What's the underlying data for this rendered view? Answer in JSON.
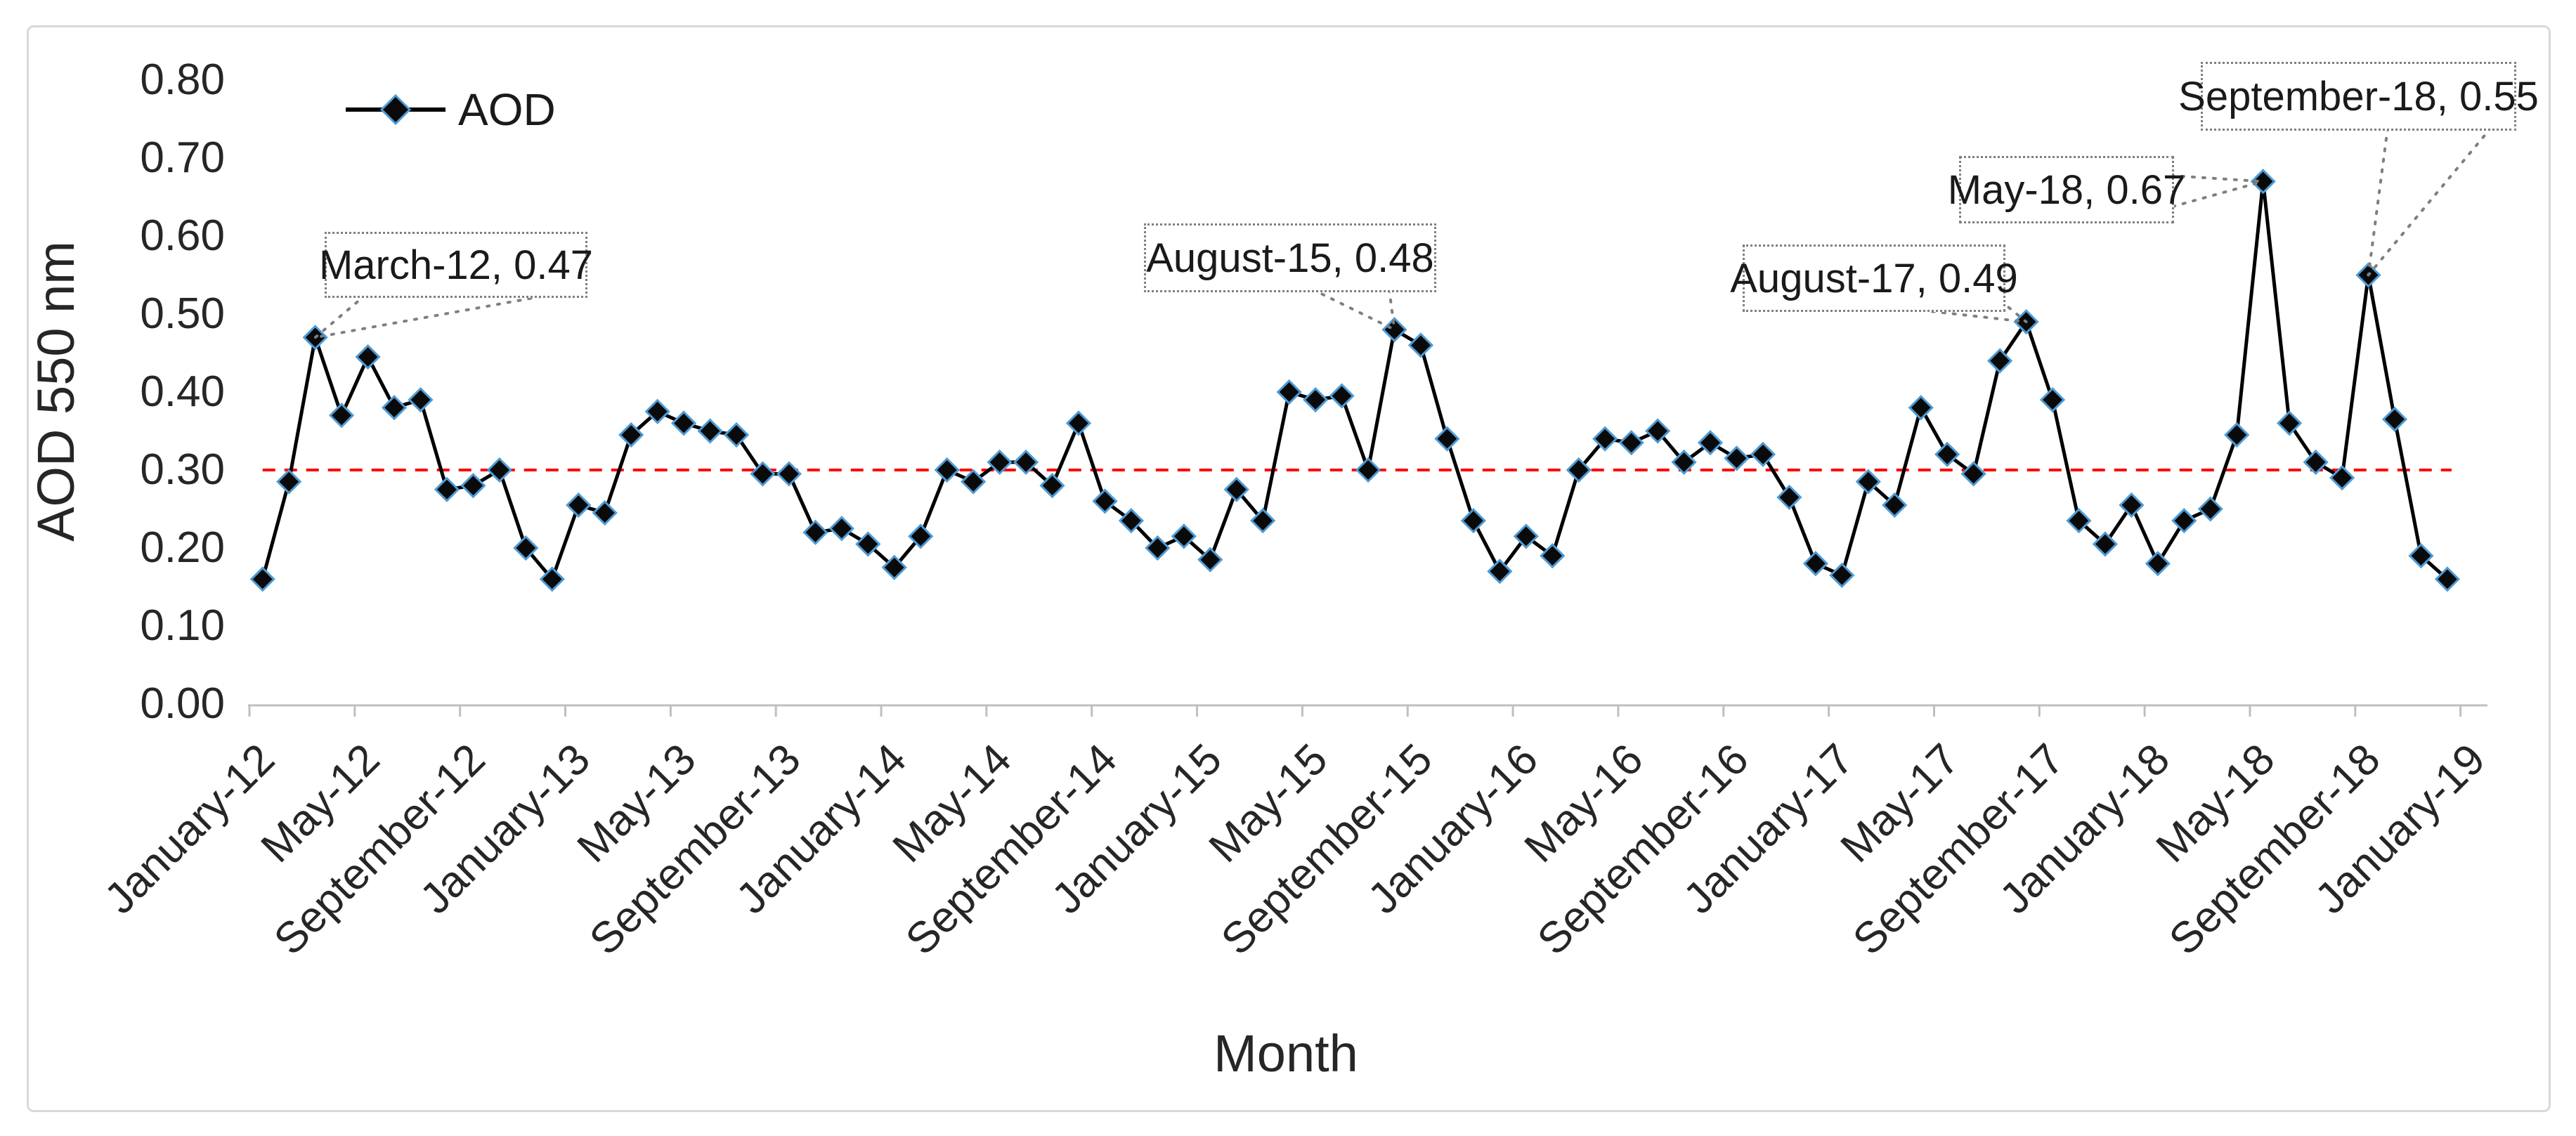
{
  "figure": {
    "background": "#FFFFFF",
    "border_color": "#D9D9D9"
  },
  "axis": {
    "x_title": "Month",
    "y_title": "AOD 550 nm"
  },
  "chart_data": {
    "type": "line",
    "title": "",
    "xlabel": "Month",
    "ylabel": "AOD 550 nm",
    "legend_label": "AOD",
    "legend_position": "top-left-inside",
    "grid": "off",
    "ylim": [
      0.0,
      0.8
    ],
    "y_step": 0.1,
    "series_color": "#000000",
    "marker": {
      "shape": "diamond",
      "fill": "#0a0a0a",
      "outline": "#4E9BD6"
    },
    "reference_line": {
      "value": 0.3,
      "color": "#FF0000",
      "style": "dashed"
    },
    "y_tick_labels": [
      "0.00",
      "0.10",
      "0.20",
      "0.30",
      "0.40",
      "0.50",
      "0.60",
      "0.70",
      "0.80"
    ],
    "x_tick_labels": [
      "January-12",
      "May-12",
      "September-12",
      "January-13",
      "May-13",
      "September-13",
      "January-14",
      "May-14",
      "September-14",
      "January-15",
      "May-15",
      "September-15",
      "January-16",
      "May-16",
      "September-16",
      "January-17",
      "May-17",
      "September-17",
      "January-18",
      "May-18",
      "September-18",
      "January-19"
    ],
    "categories": [
      "January-12",
      "February-12",
      "March-12",
      "April-12",
      "May-12",
      "June-12",
      "July-12",
      "August-12",
      "September-12",
      "October-12",
      "November-12",
      "December-12",
      "January-13",
      "February-13",
      "March-13",
      "April-13",
      "May-13",
      "June-13",
      "July-13",
      "August-13",
      "September-13",
      "October-13",
      "November-13",
      "December-13",
      "January-14",
      "February-14",
      "March-14",
      "April-14",
      "May-14",
      "June-14",
      "July-14",
      "August-14",
      "September-14",
      "October-14",
      "November-14",
      "December-14",
      "January-15",
      "February-15",
      "March-15",
      "April-15",
      "May-15",
      "June-15",
      "July-15",
      "August-15",
      "September-15",
      "October-15",
      "November-15",
      "December-15",
      "January-16",
      "February-16",
      "March-16",
      "April-16",
      "May-16",
      "June-16",
      "July-16",
      "August-16",
      "September-16",
      "October-16",
      "November-16",
      "December-16",
      "January-17",
      "February-17",
      "March-17",
      "April-17",
      "May-17",
      "June-17",
      "July-17",
      "August-17",
      "September-17",
      "October-17",
      "November-17",
      "December-17",
      "January-18",
      "February-18",
      "March-18",
      "April-18",
      "May-18",
      "June-18",
      "July-18",
      "August-18",
      "September-18",
      "October-18",
      "November-18",
      "December-18"
    ],
    "values": [
      0.16,
      0.285,
      0.47,
      0.37,
      0.445,
      0.38,
      0.39,
      0.275,
      0.28,
      0.3,
      0.2,
      0.16,
      0.255,
      0.245,
      0.345,
      0.375,
      0.36,
      0.35,
      0.345,
      0.295,
      0.295,
      0.22,
      0.225,
      0.205,
      0.175,
      0.215,
      0.3,
      0.285,
      0.31,
      0.31,
      0.28,
      0.36,
      0.26,
      0.235,
      0.2,
      0.215,
      0.185,
      0.275,
      0.235,
      0.4,
      0.39,
      0.395,
      0.3,
      0.48,
      0.46,
      0.34,
      0.235,
      0.17,
      0.215,
      0.19,
      0.3,
      0.34,
      0.335,
      0.35,
      0.31,
      0.335,
      0.315,
      0.32,
      0.265,
      0.18,
      0.165,
      0.285,
      0.255,
      0.38,
      0.32,
      0.295,
      0.44,
      0.49,
      0.39,
      0.235,
      0.205,
      0.255,
      0.18,
      0.235,
      0.25,
      0.345,
      0.67,
      0.36,
      0.31,
      0.29,
      0.55,
      0.365,
      0.19,
      0.16
    ],
    "annotations": [
      {
        "label": "March-12, 0.47",
        "month": "March-12",
        "value": 0.47
      },
      {
        "label": "August-15, 0.48",
        "month": "August-15",
        "value": 0.48
      },
      {
        "label": "August-17, 0.49",
        "month": "August-17",
        "value": 0.49
      },
      {
        "label": "May-18, 0.67",
        "month": "May-18",
        "value": 0.67
      },
      {
        "label": "September-18, 0.55",
        "month": "September-18",
        "value": 0.55
      }
    ]
  }
}
